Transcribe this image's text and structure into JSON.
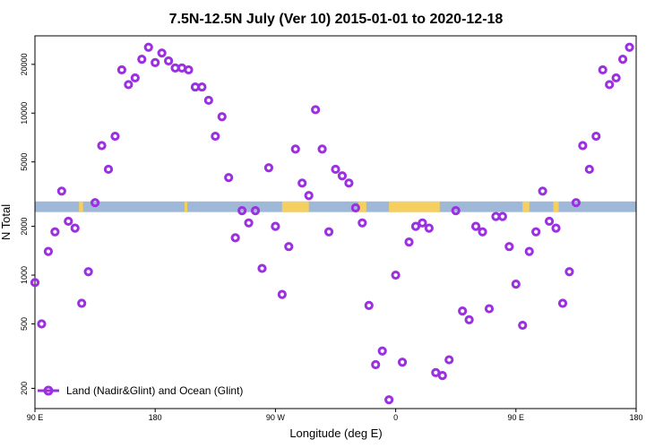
{
  "chart_data": {
    "type": "scatter",
    "title": "7.5N-12.5N July (Ver 10)   2015-01-01 to 2020-12-18",
    "xlabel": "Longitude (deg E)",
    "ylabel": "N Total",
    "x_tick_labels": [
      "90 E",
      "180",
      "90 W",
      "0",
      "90 E",
      "180"
    ],
    "y_tick_labels": [
      "200",
      "500",
      "1000",
      "2000",
      "5000",
      "10000",
      "20000"
    ],
    "y_scale": "log",
    "ylim": [
      150,
      30000
    ],
    "grid": false,
    "legend_position": "bottom-left",
    "series": [
      {
        "name": "Land (Nadir&Glint) and Ocean (Glint)",
        "color": "#9b30e0",
        "marker": "open-circle",
        "points": [
          {
            "x": 90,
            "y": 900
          },
          {
            "x": 95,
            "y": 500
          },
          {
            "x": 100,
            "y": 1400
          },
          {
            "x": 105,
            "y": 1850
          },
          {
            "x": 110,
            "y": 3300
          },
          {
            "x": 115,
            "y": 2150
          },
          {
            "x": 120,
            "y": 1950
          },
          {
            "x": 125,
            "y": 670
          },
          {
            "x": 130,
            "y": 1050
          },
          {
            "x": 135,
            "y": 2800
          },
          {
            "x": 140,
            "y": 6300
          },
          {
            "x": 145,
            "y": 4500
          },
          {
            "x": 150,
            "y": 7200
          },
          {
            "x": 155,
            "y": 18500
          },
          {
            "x": 160,
            "y": 15000
          },
          {
            "x": 165,
            "y": 16500
          },
          {
            "x": 170,
            "y": 21500
          },
          {
            "x": 175,
            "y": 25500
          },
          {
            "x": 180,
            "y": 20500
          },
          {
            "x": 185,
            "y": 23500
          },
          {
            "x": 190,
            "y": 21000
          },
          {
            "x": 195,
            "y": 19000
          },
          {
            "x": 200,
            "y": 19000
          },
          {
            "x": 205,
            "y": 18500
          },
          {
            "x": 210,
            "y": 14500
          },
          {
            "x": 215,
            "y": 14500
          },
          {
            "x": 220,
            "y": 12000
          },
          {
            "x": 225,
            "y": 7200
          },
          {
            "x": 230,
            "y": 9500
          },
          {
            "x": 235,
            "y": 4000
          },
          {
            "x": 240,
            "y": 1700
          },
          {
            "x": 245,
            "y": 2500
          },
          {
            "x": 250,
            "y": 2100
          },
          {
            "x": 255,
            "y": 2500
          },
          {
            "x": 260,
            "y": 1100
          },
          {
            "x": 265,
            "y": 4600
          },
          {
            "x": 270,
            "y": 2000
          },
          {
            "x": 275,
            "y": 760
          },
          {
            "x": 280,
            "y": 1500
          },
          {
            "x": 285,
            "y": 6000
          },
          {
            "x": 290,
            "y": 3700
          },
          {
            "x": 295,
            "y": 3100
          },
          {
            "x": 300,
            "y": 10500
          },
          {
            "x": 305,
            "y": 6000
          },
          {
            "x": 310,
            "y": 1850
          },
          {
            "x": 315,
            "y": 4500
          },
          {
            "x": 320,
            "y": 4100
          },
          {
            "x": 325,
            "y": 3700
          },
          {
            "x": 330,
            "y": 2600
          },
          {
            "x": 335,
            "y": 2100
          },
          {
            "x": 340,
            "y": 650
          },
          {
            "x": 345,
            "y": 280
          },
          {
            "x": 350,
            "y": 340
          },
          {
            "x": 355,
            "y": 170
          },
          {
            "x": 360,
            "y": 1000
          },
          {
            "x": 365,
            "y": 290
          },
          {
            "x": 370,
            "y": 1600
          },
          {
            "x": 375,
            "y": 2000
          },
          {
            "x": 380,
            "y": 2100
          },
          {
            "x": 385,
            "y": 1950
          },
          {
            "x": 390,
            "y": 250
          },
          {
            "x": 395,
            "y": 240
          },
          {
            "x": 400,
            "y": 300
          },
          {
            "x": 405,
            "y": 2500
          },
          {
            "x": 410,
            "y": 600
          },
          {
            "x": 415,
            "y": 530
          },
          {
            "x": 420,
            "y": 2000
          },
          {
            "x": 425,
            "y": 1850
          },
          {
            "x": 430,
            "y": 620
          },
          {
            "x": 435,
            "y": 2300
          },
          {
            "x": 440,
            "y": 2300
          },
          {
            "x": 445,
            "y": 1500
          },
          {
            "x": 450,
            "y": 880
          },
          {
            "x": 455,
            "y": 490
          },
          {
            "x": 460,
            "y": 1400
          },
          {
            "x": 465,
            "y": 1850
          },
          {
            "x": 470,
            "y": 3300
          },
          {
            "x": 475,
            "y": 2150
          },
          {
            "x": 480,
            "y": 1950
          },
          {
            "x": 485,
            "y": 670
          },
          {
            "x": 490,
            "y": 1050
          },
          {
            "x": 495,
            "y": 2800
          },
          {
            "x": 500,
            "y": 6300
          },
          {
            "x": 505,
            "y": 4500
          },
          {
            "x": 510,
            "y": 7200
          },
          {
            "x": 515,
            "y": 18500
          },
          {
            "x": 520,
            "y": 15000
          },
          {
            "x": 525,
            "y": 16500
          },
          {
            "x": 530,
            "y": 21500
          },
          {
            "x": 535,
            "y": 25500
          }
        ]
      }
    ],
    "background_map": {
      "ocean_color": "#9fb8d8",
      "land_color": "#f5d060",
      "y_band": [
        2450,
        2850
      ],
      "land_x": [
        [
          123,
          126
        ],
        [
          202,
          204
        ],
        [
          275,
          295
        ],
        [
          332,
          338
        ],
        [
          355,
          393
        ],
        [
          455,
          460
        ],
        [
          478,
          482
        ]
      ]
    }
  }
}
